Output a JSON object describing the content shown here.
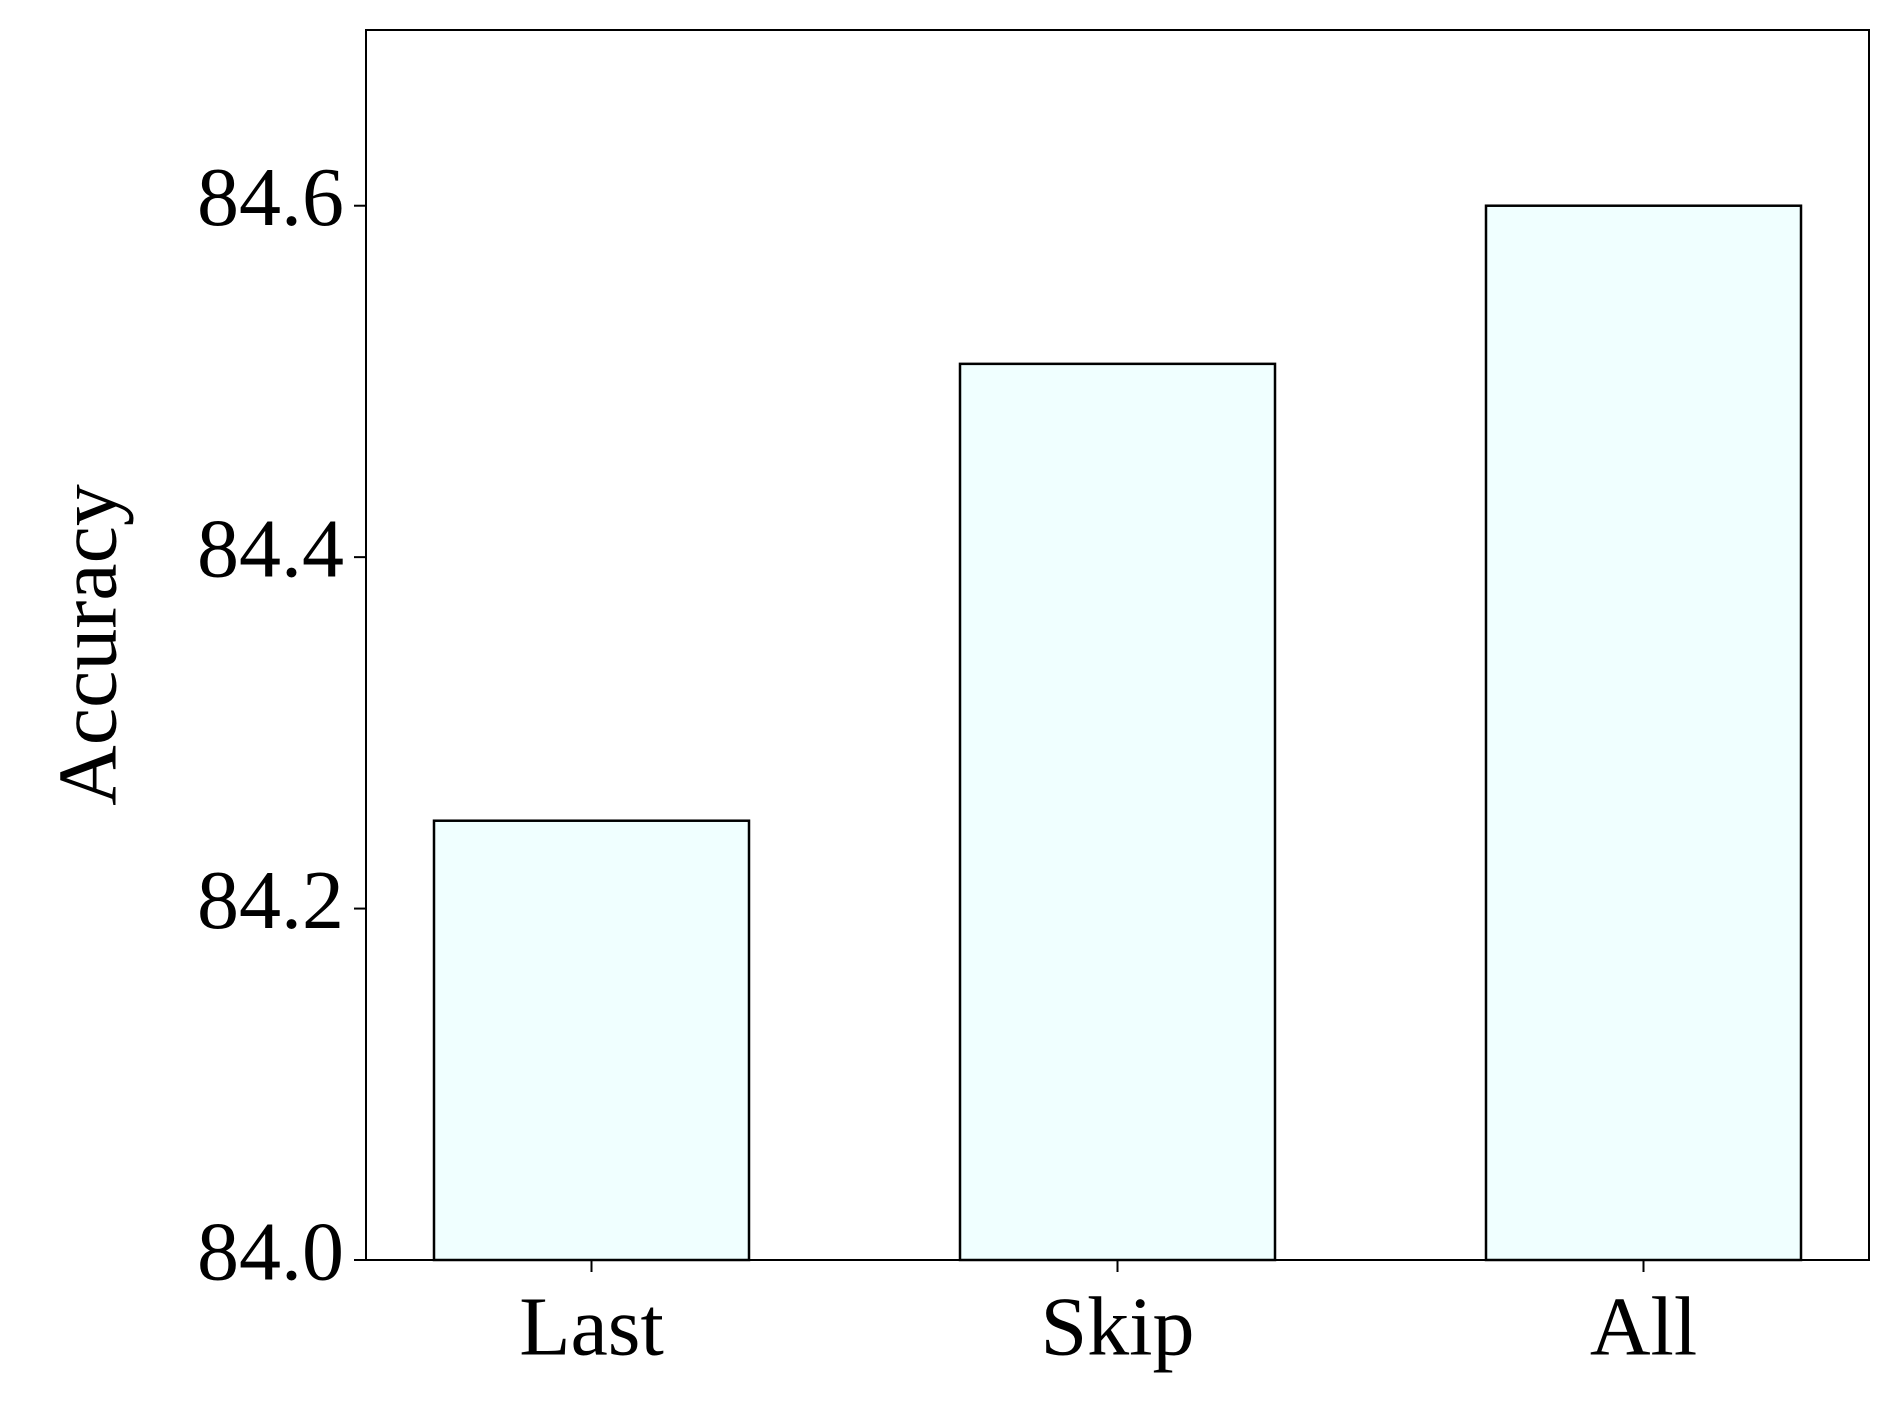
{
  "chart_data": {
    "type": "bar",
    "y_label": "Accuracy",
    "categories": [
      "Last",
      "Skip",
      "All"
    ],
    "values": [
      84.25,
      84.51,
      84.6
    ],
    "color": "#f0ffff",
    "ylim": [
      84.0,
      84.7
    ],
    "yticks": [
      {
        "value": 84,
        "label": "84.0"
      },
      84.2,
      84.4,
      84.6
    ],
    "grid": false
  }
}
